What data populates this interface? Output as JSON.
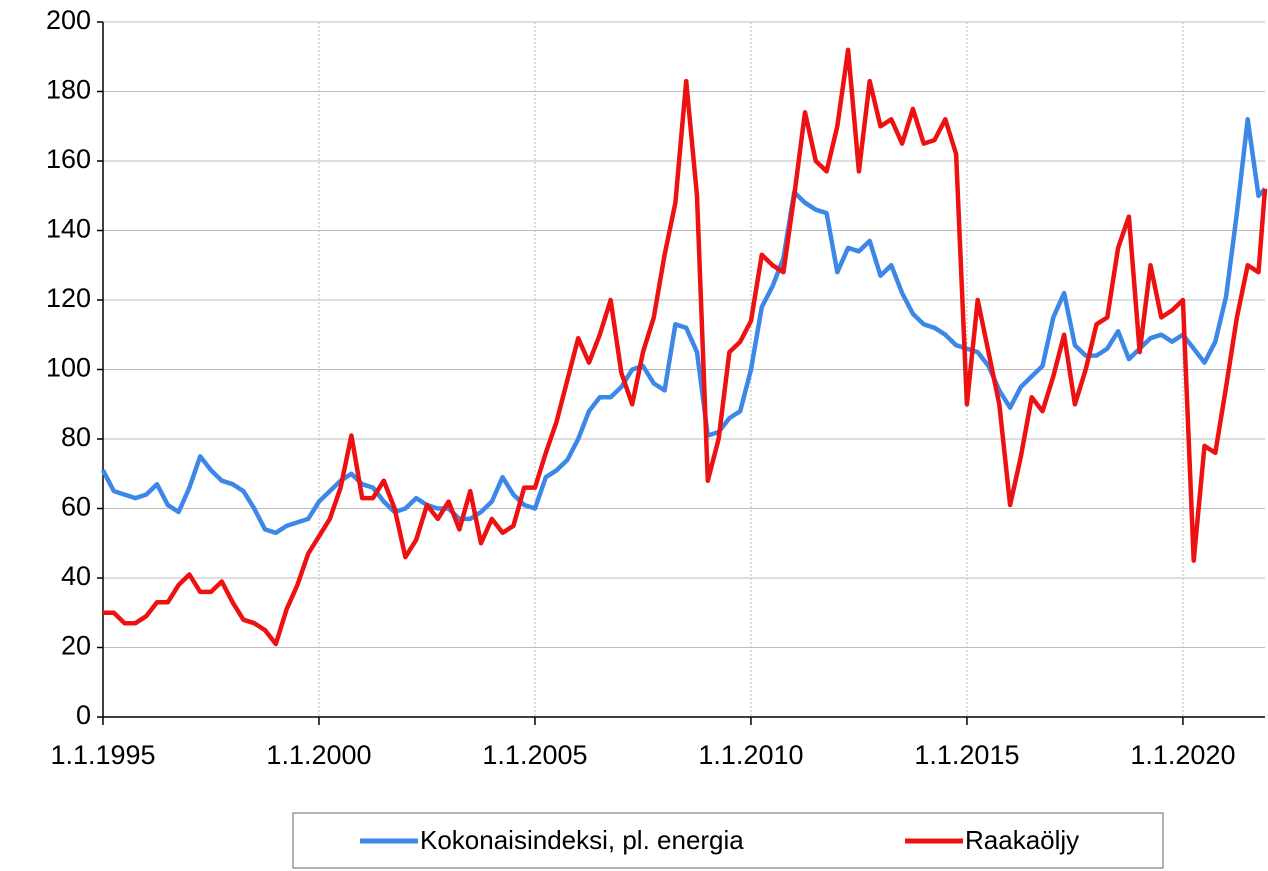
{
  "chart_data": {
    "type": "line",
    "x": [
      1995,
      1995.25,
      1995.5,
      1995.75,
      1996,
      1996.25,
      1996.5,
      1996.75,
      1997,
      1997.25,
      1997.5,
      1997.75,
      1998,
      1998.25,
      1998.5,
      1998.75,
      1999,
      1999.25,
      1999.5,
      1999.75,
      2000,
      2000.25,
      2000.5,
      2000.75,
      2001,
      2001.25,
      2001.5,
      2001.75,
      2002,
      2002.25,
      2002.5,
      2002.75,
      2003,
      2003.25,
      2003.5,
      2003.75,
      2004,
      2004.25,
      2004.5,
      2004.75,
      2005,
      2005.25,
      2005.5,
      2005.75,
      2006,
      2006.25,
      2006.5,
      2006.75,
      2007,
      2007.25,
      2007.5,
      2007.75,
      2008,
      2008.25,
      2008.5,
      2008.75,
      2009,
      2009.25,
      2009.5,
      2009.75,
      2010,
      2010.25,
      2010.5,
      2010.75,
      2011,
      2011.25,
      2011.5,
      2011.75,
      2012,
      2012.25,
      2012.5,
      2012.75,
      2013,
      2013.25,
      2013.5,
      2013.75,
      2014,
      2014.25,
      2014.5,
      2014.75,
      2015,
      2015.25,
      2015.5,
      2015.75,
      2016,
      2016.25,
      2016.5,
      2016.75,
      2017,
      2017.25,
      2017.5,
      2017.75,
      2018,
      2018.25,
      2018.5,
      2018.75,
      2019,
      2019.25,
      2019.5,
      2019.75,
      2020,
      2020.25,
      2020.5,
      2020.75,
      2021,
      2021.25,
      2021.5,
      2021.75,
      2021.9
    ],
    "series": [
      {
        "name": "Kokonaisindeksi, pl. energia",
        "color": "#3c87e8",
        "values": [
          71,
          65,
          64,
          63,
          64,
          67,
          61,
          59,
          66,
          75,
          71,
          68,
          67,
          65,
          60,
          54,
          53,
          55,
          56,
          57,
          62,
          65,
          68,
          70,
          67,
          66,
          62,
          59,
          60,
          63,
          61,
          60,
          60,
          57,
          57,
          59,
          62,
          69,
          64,
          61,
          60,
          69,
          71,
          74,
          80,
          88,
          92,
          92,
          95,
          100,
          101,
          96,
          94,
          113,
          112,
          105,
          81,
          82,
          86,
          88,
          100,
          118,
          124,
          132,
          151,
          148,
          146,
          145,
          128,
          135,
          134,
          137,
          127,
          130,
          122,
          116,
          113,
          112,
          110,
          107,
          106,
          105,
          101,
          94,
          89,
          95,
          98,
          101,
          115,
          122,
          107,
          104,
          104,
          106,
          111,
          103,
          106,
          109,
          110,
          108,
          110,
          106,
          102,
          108,
          121,
          145,
          172,
          150,
          152
        ]
      },
      {
        "name": "Raakaöljy",
        "color": "#ee1111",
        "values": [
          30,
          30,
          27,
          27,
          29,
          33,
          33,
          38,
          41,
          36,
          36,
          39,
          33,
          28,
          27,
          25,
          21,
          31,
          38,
          47,
          52,
          57,
          66,
          81,
          63,
          63,
          68,
          60,
          46,
          51,
          61,
          57,
          62,
          54,
          65,
          50,
          57,
          53,
          55,
          66,
          66,
          76,
          85,
          97,
          109,
          102,
          110,
          120,
          99,
          90,
          105,
          115,
          133,
          148,
          183,
          150,
          68,
          80,
          105,
          108,
          114,
          133,
          130,
          128,
          150,
          174,
          160,
          157,
          170,
          192,
          157,
          183,
          170,
          172,
          165,
          175,
          165,
          166,
          172,
          162,
          90,
          120,
          105,
          90,
          61,
          75,
          92,
          88,
          98,
          110,
          90,
          100,
          113,
          115,
          135,
          144,
          105,
          130,
          115,
          117,
          120,
          45,
          78,
          76,
          95,
          115,
          130,
          128,
          152
        ]
      }
    ],
    "xlim": [
      1995,
      2021.9
    ],
    "xticks": [
      {
        "value": 1995,
        "label": "1.1.1995"
      },
      {
        "value": 2000,
        "label": "1.1.2000"
      },
      {
        "value": 2005,
        "label": "1.1.2005"
      },
      {
        "value": 2010,
        "label": "1.1.2010"
      },
      {
        "value": 2015,
        "label": "1.1.2015"
      },
      {
        "value": 2020,
        "label": "1.1.2020"
      }
    ],
    "ylim": [
      0,
      200
    ],
    "yticks": [
      0,
      20,
      40,
      60,
      80,
      100,
      120,
      140,
      160,
      180,
      200
    ],
    "grid": true,
    "legend": "bottom"
  }
}
